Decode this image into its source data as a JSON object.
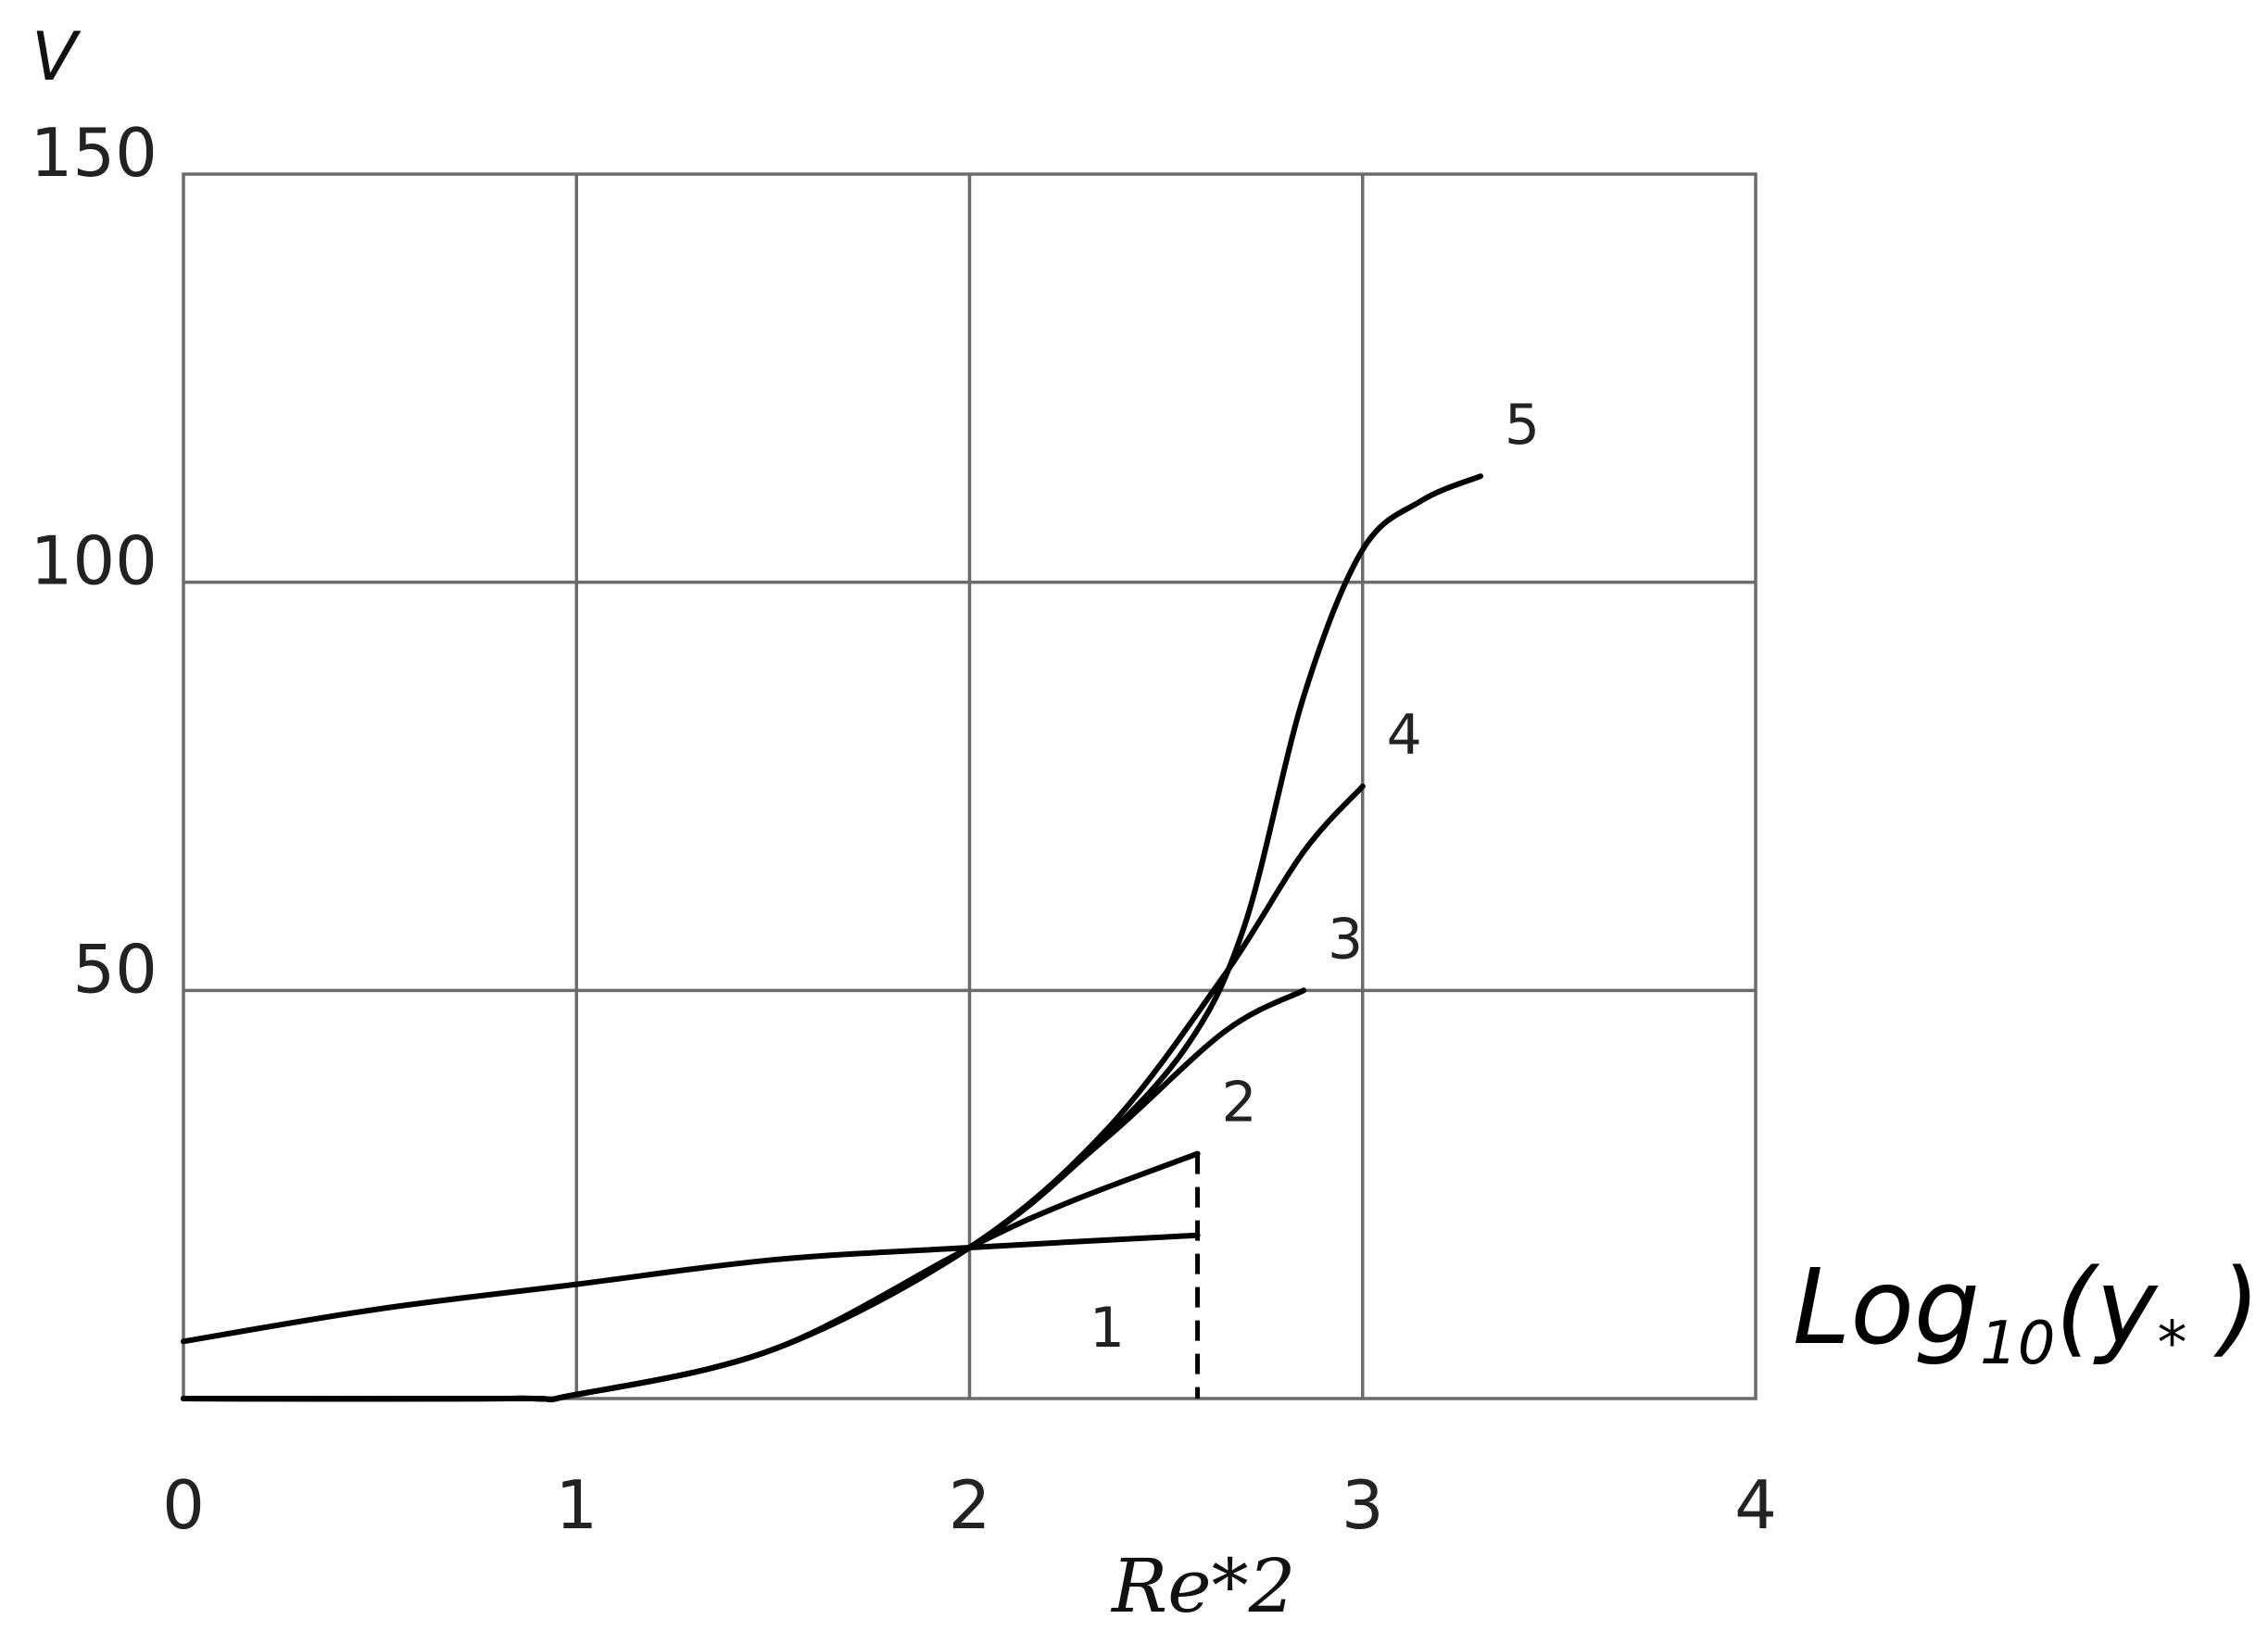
{
  "chart_data": {
    "type": "line",
    "ylabel": "V",
    "xlabel": {
      "base": "Log",
      "sub": "10",
      "open": "(y",
      "subscript_star": "*",
      "close": " )"
    },
    "x_remark": "Re*2",
    "xlim": [
      0,
      4
    ],
    "ylim": [
      0,
      150
    ],
    "x_ticks": [
      "0",
      "1",
      "2",
      "3",
      "4"
    ],
    "y_ticks": [
      "50",
      "100",
      "150"
    ],
    "grid": true,
    "series": [
      {
        "label": "1",
        "points": [
          [
            0,
            7
          ],
          [
            0.5,
            11
          ],
          [
            1,
            14
          ],
          [
            1.5,
            17
          ],
          [
            2,
            18.5
          ],
          [
            2.58,
            20
          ]
        ]
      },
      {
        "label": "2",
        "points": [
          [
            0,
            0
          ],
          [
            0.83,
            0
          ],
          [
            1,
            0.5
          ],
          [
            1.5,
            6
          ],
          [
            2,
            18.5
          ],
          [
            2.25,
            24
          ],
          [
            2.58,
            30
          ]
        ]
      },
      {
        "label": "3",
        "points": [
          [
            0,
            0
          ],
          [
            0.83,
            0
          ],
          [
            1,
            0.5
          ],
          [
            1.5,
            6
          ],
          [
            2,
            18.5
          ],
          [
            2.35,
            32
          ],
          [
            2.65,
            45
          ],
          [
            2.85,
            50
          ]
        ]
      },
      {
        "label": "4",
        "points": [
          [
            0,
            0
          ],
          [
            0.83,
            0
          ],
          [
            1,
            0.5
          ],
          [
            1.5,
            6
          ],
          [
            2,
            18.5
          ],
          [
            2.35,
            33
          ],
          [
            2.65,
            52
          ],
          [
            2.85,
            67
          ],
          [
            3,
            75
          ]
        ]
      },
      {
        "label": "5",
        "points": [
          [
            0,
            0
          ],
          [
            0.83,
            0
          ],
          [
            1,
            0.5
          ],
          [
            1.5,
            6
          ],
          [
            2,
            18.5
          ],
          [
            2.3,
            30
          ],
          [
            2.55,
            43
          ],
          [
            2.7,
            58
          ],
          [
            2.85,
            86
          ],
          [
            3.0,
            104
          ],
          [
            3.15,
            110
          ],
          [
            3.3,
            113
          ]
        ]
      }
    ],
    "vertical_dashed_at": {
      "x": 2.58,
      "from": 0,
      "to": 30
    }
  }
}
